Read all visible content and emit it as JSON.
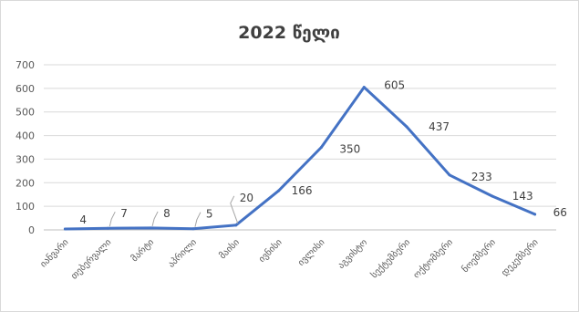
{
  "chart_data": {
    "type": "line",
    "title": "2022 წელი",
    "xlabel": "",
    "ylabel": "",
    "categories": [
      "იანვარი",
      "თებერვალი",
      "მარტი",
      "აპრილი",
      "მაისი",
      "ივნისი",
      "ივლისი",
      "აგვისტო",
      "სექტემბერი",
      "ოქტომბერი",
      "ნოემბერი",
      "დეკემბერი"
    ],
    "series": [
      {
        "values": [
          4,
          7,
          8,
          5,
          20,
          166,
          350,
          605,
          437,
          233,
          143,
          66
        ]
      }
    ],
    "data_labels": [
      "4",
      "7",
      "8",
      "5",
      "20",
      "166",
      "350",
      "605",
      "437",
      "233",
      "143",
      "66"
    ],
    "ylim": [
      0,
      700
    ],
    "yticks": [
      0,
      100,
      200,
      300,
      400,
      500,
      600,
      700
    ],
    "grid": true,
    "legend": "none",
    "line_color": "#4472c4"
  }
}
